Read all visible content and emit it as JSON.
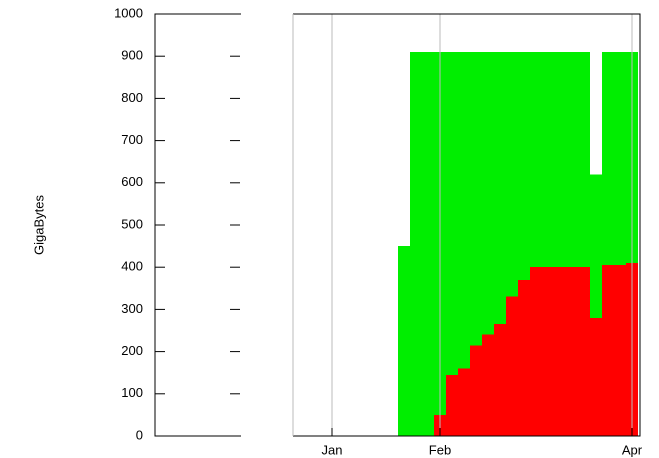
{
  "chart_data": {
    "type": "stacked_bar",
    "y_label": "GigaBytes",
    "categories": [
      null,
      null,
      null,
      null,
      null,
      null,
      null,
      null,
      null,
      null,
      null,
      null,
      null,
      null,
      null,
      "Jan",
      null,
      null,
      null,
      null,
      null,
      null,
      null,
      null,
      "Feb",
      null,
      null,
      null,
      null,
      null,
      null,
      null,
      null,
      null,
      null,
      null,
      null,
      null,
      null,
      null,
      "Apr"
    ],
    "series": [
      {
        "color": "#ff0000",
        "values": [
          0,
          0,
          0,
          0,
          0,
          0,
          0,
          0,
          0,
          0,
          0,
          0,
          0,
          0,
          0,
          0,
          0,
          0,
          0,
          0,
          0,
          0,
          0,
          0,
          50,
          145,
          160,
          215,
          240,
          265,
          330,
          370,
          400,
          400,
          400,
          400,
          400,
          280,
          405,
          405,
          410
        ]
      },
      {
        "color": "#00ee00",
        "values": [
          0,
          0,
          0,
          0,
          0,
          0,
          0,
          0,
          0,
          0,
          0,
          0,
          0,
          0,
          0,
          0,
          0,
          0,
          0,
          0,
          0,
          450,
          910,
          910,
          860,
          765,
          750,
          695,
          670,
          645,
          580,
          540,
          510,
          510,
          510,
          510,
          510,
          340,
          505,
          505,
          500
        ]
      }
    ],
    "ylim": [
      0,
      1000
    ],
    "yticks": [
      0,
      100,
      200,
      300,
      400,
      500,
      600,
      700,
      800,
      900,
      1000
    ],
    "xgrid": true
  }
}
